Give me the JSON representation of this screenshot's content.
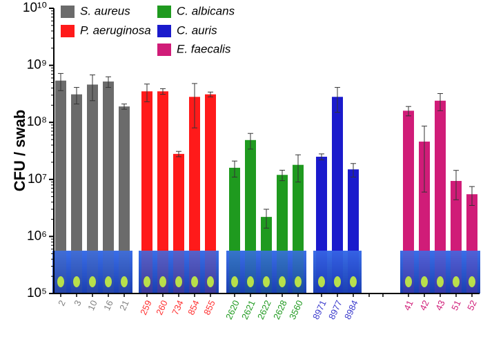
{
  "chart_data": {
    "type": "bar",
    "y_label": "CFU / swab",
    "log_scale": true,
    "ylim": [
      100000,
      10000000000
    ],
    "yticks": [
      {
        "value": 100000,
        "label": "10⁵"
      },
      {
        "value": 1000000,
        "label": "10⁶"
      },
      {
        "value": 10000000,
        "label": "10⁷"
      },
      {
        "value": 100000000,
        "label": "10⁸"
      },
      {
        "value": 1000000000,
        "label": "10⁹"
      },
      {
        "value": 10000000000,
        "label": "10¹⁰"
      }
    ],
    "series": [
      {
        "name": "S. aureus",
        "color": "#6b6b6b",
        "label_color": "#808080",
        "categories": [
          "2",
          "3",
          "10",
          "16",
          "21"
        ],
        "values": [
          540000000,
          310000000,
          460000000,
          520000000,
          190000000
        ],
        "errors": [
          180000000,
          100000000,
          220000000,
          110000000,
          20000000
        ]
      },
      {
        "name": "P. aeruginosa",
        "color": "#ff1a1a",
        "label_color": "#ff3030",
        "categories": [
          "259",
          "260",
          "734",
          "854",
          "855"
        ],
        "values": [
          350000000,
          350000000,
          28000000,
          280000000,
          310000000
        ],
        "errors": [
          120000000,
          40000000,
          3000000,
          200000000,
          30000000
        ]
      },
      {
        "name": "C. albicans",
        "color": "#1f9a1f",
        "label_color": "#1f9a1f",
        "categories": [
          "2620",
          "2621",
          "2622",
          "2628",
          "3560"
        ],
        "values": [
          16000000,
          49000000,
          2200000,
          12000000,
          18000000
        ],
        "errors": [
          5000000,
          15000000,
          800000,
          2500000,
          9000000
        ]
      },
      {
        "name": "C. auris",
        "color": "#1a1acc",
        "label_color": "#3a3acc",
        "categories": [
          "8971",
          "8977",
          "8984"
        ],
        "values": [
          25000000,
          280000000,
          15000000
        ],
        "errors": [
          3000000,
          130000000,
          4000000
        ]
      },
      {
        "name": "E. faecalis",
        "color": "#d01c78",
        "label_color": "#d01c78",
        "categories": [
          "41",
          "42",
          "43",
          "51",
          "52"
        ],
        "values": [
          160000000,
          46000000,
          240000000,
          9400000,
          5500000
        ],
        "errors": [
          30000000,
          40000000,
          80000000,
          5000000,
          2000000
        ]
      }
    ]
  }
}
